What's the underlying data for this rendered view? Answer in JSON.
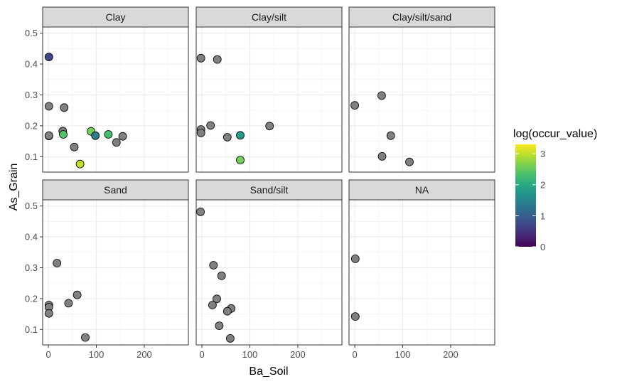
{
  "chart_data": {
    "type": "scatter",
    "xlabel": "Ba_Soil",
    "ylabel": "As_Grain",
    "xlim": [
      -12,
      292
    ],
    "ylim": [
      0.05,
      0.52
    ],
    "xticks": [
      0,
      100,
      200
    ],
    "xtick_labels": [
      "0",
      "100",
      "200"
    ],
    "yticks": [
      0.1,
      0.2,
      0.3,
      0.4,
      0.5
    ],
    "ytick_labels": [
      "0.1",
      "0.2",
      "0.3",
      "0.4",
      "0.5"
    ],
    "legend": {
      "title": "log(occur_value)",
      "placement": "right",
      "min": 0,
      "max": 3.3,
      "ticks": [
        0,
        1,
        2,
        3
      ],
      "tick_labels": [
        "0",
        "1",
        "2",
        "3"
      ],
      "na_color": "#808080"
    },
    "panels": [
      {
        "label": "Clay",
        "points": [
          {
            "x": 1,
            "y": 0.423,
            "c": 0.7
          },
          {
            "x": 1,
            "y": 0.263,
            "c": null
          },
          {
            "x": 33,
            "y": 0.259,
            "c": null
          },
          {
            "x": 1,
            "y": 0.167,
            "c": null
          },
          {
            "x": 1,
            "y": 0.168,
            "c": null
          },
          {
            "x": 30,
            "y": 0.183,
            "c": null
          },
          {
            "x": 31,
            "y": 0.172,
            "c": 2.4
          },
          {
            "x": 54,
            "y": 0.131,
            "c": null
          },
          {
            "x": 89,
            "y": 0.182,
            "c": 2.6
          },
          {
            "x": 98,
            "y": 0.168,
            "c": 1.4
          },
          {
            "x": 125,
            "y": 0.172,
            "c": 2.3
          },
          {
            "x": 142,
            "y": 0.146,
            "c": null
          },
          {
            "x": 155,
            "y": 0.166,
            "c": null
          },
          {
            "x": 66,
            "y": 0.076,
            "c": 3.0
          }
        ]
      },
      {
        "label": "Clay/silt",
        "points": [
          {
            "x": -2,
            "y": 0.419,
            "c": null
          },
          {
            "x": 32,
            "y": 0.415,
            "c": null
          },
          {
            "x": 18,
            "y": 0.201,
            "c": null
          },
          {
            "x": -2,
            "y": 0.188,
            "c": null
          },
          {
            "x": -2,
            "y": 0.177,
            "c": null
          },
          {
            "x": 53,
            "y": 0.163,
            "c": null
          },
          {
            "x": 80,
            "y": 0.169,
            "c": 1.85
          },
          {
            "x": 141,
            "y": 0.199,
            "c": null
          },
          {
            "x": 80,
            "y": 0.089,
            "c": 2.6
          }
        ]
      },
      {
        "label": "Clay/silt/sand",
        "points": [
          {
            "x": 0,
            "y": 0.266,
            "c": null
          },
          {
            "x": 56,
            "y": 0.298,
            "c": null
          },
          {
            "x": 75,
            "y": 0.168,
            "c": null
          },
          {
            "x": 57,
            "y": 0.101,
            "c": null
          },
          {
            "x": 114,
            "y": 0.083,
            "c": null
          }
        ]
      },
      {
        "label": "Sand",
        "points": [
          {
            "x": 18,
            "y": 0.315,
            "c": null
          },
          {
            "x": 60,
            "y": 0.212,
            "c": null
          },
          {
            "x": 42,
            "y": 0.185,
            "c": null
          },
          {
            "x": 1,
            "y": 0.179,
            "c": null
          },
          {
            "x": 1,
            "y": 0.172,
            "c": null
          },
          {
            "x": 1,
            "y": 0.152,
            "c": null
          },
          {
            "x": 77,
            "y": 0.074,
            "c": null
          }
        ]
      },
      {
        "label": "Sand/silt",
        "points": [
          {
            "x": -3,
            "y": 0.481,
            "c": null
          },
          {
            "x": 24,
            "y": 0.308,
            "c": null
          },
          {
            "x": 41,
            "y": 0.274,
            "c": null
          },
          {
            "x": 31,
            "y": 0.199,
            "c": null
          },
          {
            "x": 22,
            "y": 0.179,
            "c": null
          },
          {
            "x": 61,
            "y": 0.168,
            "c": null
          },
          {
            "x": 53,
            "y": 0.159,
            "c": null
          },
          {
            "x": 36,
            "y": 0.112,
            "c": null
          },
          {
            "x": 59,
            "y": 0.071,
            "c": null
          }
        ]
      },
      {
        "label": "NA",
        "points": [
          {
            "x": 1,
            "y": 0.329,
            "c": null
          },
          {
            "x": 1,
            "y": 0.142,
            "c": null
          }
        ]
      }
    ]
  }
}
